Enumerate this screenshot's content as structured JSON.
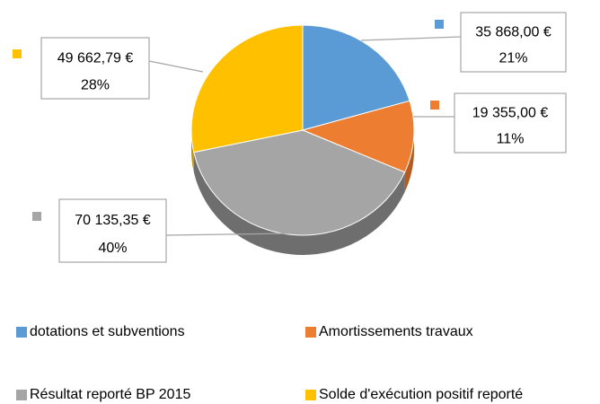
{
  "chart_data": {
    "type": "pie",
    "categories": [
      "dotations et subventions",
      "Amortissements travaux",
      "Résultat reporté BP 2015",
      "Solde d'exécution positif reporté"
    ],
    "values": [
      35868.0,
      19355.0,
      70135.35,
      49662.79
    ],
    "value_labels": [
      "35 868,00 €",
      "19 355,00 €",
      "70 135,35 €",
      "49 662,79 €"
    ],
    "percent_labels": [
      "21%",
      "11%",
      "40%",
      "28%"
    ],
    "colors": [
      "#5b9bd5",
      "#ed7d31",
      "#a5a5a5",
      "#ffc000"
    ],
    "side_colors": [
      "#3f78ab",
      "#b65b1f",
      "#6e6e6e",
      "#c49300"
    ],
    "legend": "bottom"
  }
}
